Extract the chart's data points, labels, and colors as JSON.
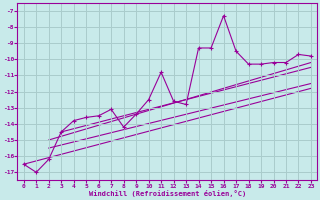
{
  "xlabel": "Windchill (Refroidissement éolien,°C)",
  "ylabel": "",
  "background_color": "#c8eaea",
  "grid_color": "#aacccc",
  "line_color": "#990099",
  "xlim": [
    -0.5,
    23.5
  ],
  "ylim": [
    -17.5,
    -6.5
  ],
  "xticks": [
    0,
    1,
    2,
    3,
    4,
    5,
    6,
    7,
    8,
    9,
    10,
    11,
    12,
    13,
    14,
    15,
    16,
    17,
    18,
    19,
    20,
    21,
    22,
    23
  ],
  "yticks": [
    -17,
    -16,
    -15,
    -14,
    -13,
    -12,
    -11,
    -10,
    -9,
    -8,
    -7
  ],
  "series": [
    [
      0,
      -16.5
    ],
    [
      1,
      -17.0
    ],
    [
      2,
      -16.2
    ],
    [
      3,
      -14.5
    ],
    [
      4,
      -13.8
    ],
    [
      5,
      -13.6
    ],
    [
      6,
      -13.5
    ],
    [
      7,
      -13.1
    ],
    [
      8,
      -14.2
    ],
    [
      9,
      -13.4
    ],
    [
      10,
      -12.5
    ],
    [
      11,
      -10.8
    ],
    [
      12,
      -12.6
    ],
    [
      13,
      -12.8
    ],
    [
      14,
      -9.3
    ],
    [
      15,
      -9.3
    ],
    [
      16,
      -7.3
    ],
    [
      17,
      -9.5
    ],
    [
      18,
      -10.3
    ],
    [
      19,
      -10.3
    ],
    [
      20,
      -10.2
    ],
    [
      21,
      -10.2
    ],
    [
      22,
      -9.7
    ],
    [
      23,
      -9.8
    ]
  ],
  "linear_lines": [
    {
      "x": [
        2,
        23
      ],
      "y": [
        -15.0,
        -10.2
      ]
    },
    {
      "x": [
        3,
        23
      ],
      "y": [
        -14.5,
        -10.5
      ]
    },
    {
      "x": [
        2,
        23
      ],
      "y": [
        -15.5,
        -11.5
      ]
    },
    {
      "x": [
        0,
        23
      ],
      "y": [
        -16.5,
        -11.8
      ]
    }
  ]
}
